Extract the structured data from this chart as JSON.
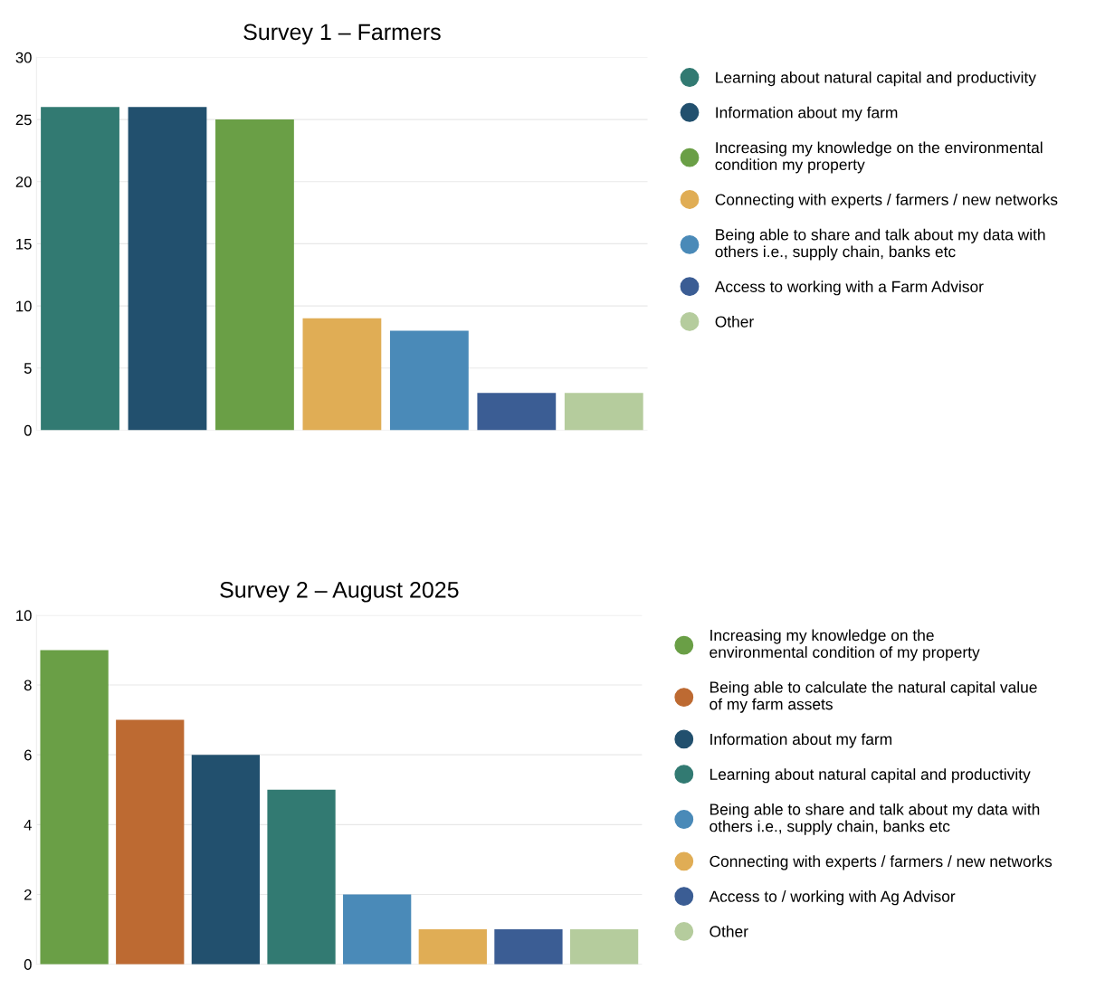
{
  "chart_data": [
    {
      "type": "bar",
      "title": "Survey 1 – Farmers",
      "categories": [
        null,
        null,
        null,
        null,
        null,
        null,
        null
      ],
      "ylim": [
        0,
        30
      ],
      "yticks": [
        0,
        5,
        10,
        15,
        20,
        25,
        30
      ],
      "grid": "y",
      "legend": "right",
      "series": [
        {
          "name": "Learning about natural capital and productivity",
          "color": "#327a72",
          "values": [
            26,
            null,
            null,
            null,
            null,
            null,
            null
          ]
        },
        {
          "name": "Information about my farm",
          "color": "#22506e",
          "values": [
            null,
            26,
            null,
            null,
            null,
            null,
            null
          ]
        },
        {
          "name": "Increasing my knowledge on the environmental\ncondition my property",
          "color": "#6a9f46",
          "values": [
            null,
            null,
            25,
            null,
            null,
            null,
            null
          ]
        },
        {
          "name": "Connecting with experts / farmers / new networks",
          "color": "#e0ad55",
          "values": [
            null,
            null,
            null,
            9,
            null,
            null,
            null
          ]
        },
        {
          "name": "Being able to share and talk about my data with\nothers i.e., supply chain, banks etc",
          "color": "#4a8ab8",
          "values": [
            null,
            null,
            null,
            null,
            8,
            null,
            null
          ]
        },
        {
          "name": "Access to working with a Farm Advisor",
          "color": "#3b5d94",
          "values": [
            null,
            null,
            null,
            null,
            null,
            3,
            null
          ]
        },
        {
          "name": "Other",
          "color": "#b5cc9d",
          "values": [
            null,
            null,
            null,
            null,
            null,
            null,
            3
          ]
        }
      ]
    },
    {
      "type": "bar",
      "title": "Survey 2 – August 2025",
      "categories": [
        null,
        null,
        null,
        null,
        null,
        null,
        null,
        null
      ],
      "ylim": [
        0,
        10
      ],
      "yticks": [
        0,
        2,
        4,
        6,
        8,
        10
      ],
      "grid": "y",
      "legend": "right",
      "series": [
        {
          "name": "Increasing my knowledge on the\nenvironmental condition of my property",
          "color": "#6a9f46",
          "values": [
            9,
            null,
            null,
            null,
            null,
            null,
            null,
            null
          ]
        },
        {
          "name": "Being able to calculate the natural capital value\nof my farm assets",
          "color": "#bd6a32",
          "values": [
            null,
            7,
            null,
            null,
            null,
            null,
            null,
            null
          ]
        },
        {
          "name": "Information about my farm",
          "color": "#22506e",
          "values": [
            null,
            null,
            6,
            null,
            null,
            null,
            null,
            null
          ]
        },
        {
          "name": "Learning about natural capital and productivity",
          "color": "#327a72",
          "values": [
            null,
            null,
            null,
            5,
            null,
            null,
            null,
            null
          ]
        },
        {
          "name": "Being able to share and talk about my data with\nothers i.e., supply chain, banks etc",
          "color": "#4a8ab8",
          "values": [
            null,
            null,
            null,
            null,
            2,
            null,
            null,
            null
          ]
        },
        {
          "name": "Connecting with experts / farmers / new networks",
          "color": "#e0ad55",
          "values": [
            null,
            null,
            null,
            null,
            null,
            1,
            null,
            null
          ]
        },
        {
          "name": "Access to / working with Ag Advisor",
          "color": "#3b5d94",
          "values": [
            null,
            null,
            null,
            null,
            null,
            null,
            1,
            null
          ]
        },
        {
          "name": "Other",
          "color": "#b5cc9d",
          "values": [
            null,
            null,
            null,
            null,
            null,
            null,
            null,
            1
          ]
        }
      ]
    }
  ]
}
